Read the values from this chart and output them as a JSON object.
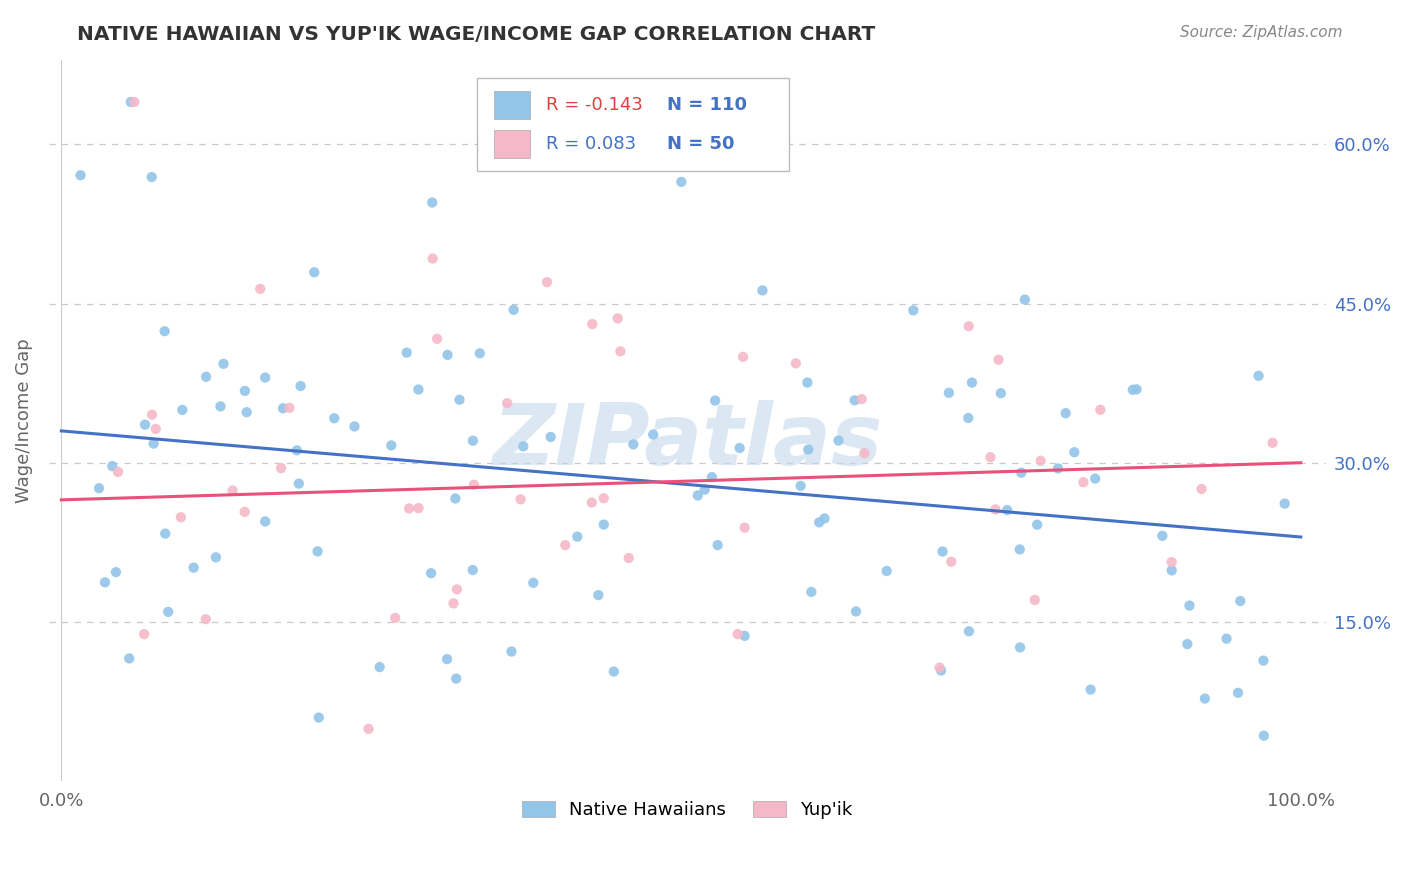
{
  "title": "NATIVE HAWAIIAN VS YUP'IK WAGE/INCOME GAP CORRELATION CHART",
  "source": "Source: ZipAtlas.com",
  "ylabel": "Wage/Income Gap",
  "yticks": [
    "15.0%",
    "30.0%",
    "45.0%",
    "60.0%"
  ],
  "ytick_vals": [
    0.15,
    0.3,
    0.45,
    0.6
  ],
  "legend_label1": "Native Hawaiians",
  "legend_label2": "Yup'ik",
  "R1": "-0.143",
  "N1": "110",
  "R2": "0.083",
  "N2": "50",
  "color_blue": "#92C5E8",
  "color_pink": "#F5B8C8",
  "color_line_blue": "#4472C4",
  "color_line_pink": "#E8517A",
  "watermark": "ZIPatlas",
  "blue_intercept": 0.33,
  "blue_slope": -0.1,
  "pink_intercept": 0.265,
  "pink_slope": 0.035,
  "ylim_min": 0.0,
  "ylim_max": 0.68
}
